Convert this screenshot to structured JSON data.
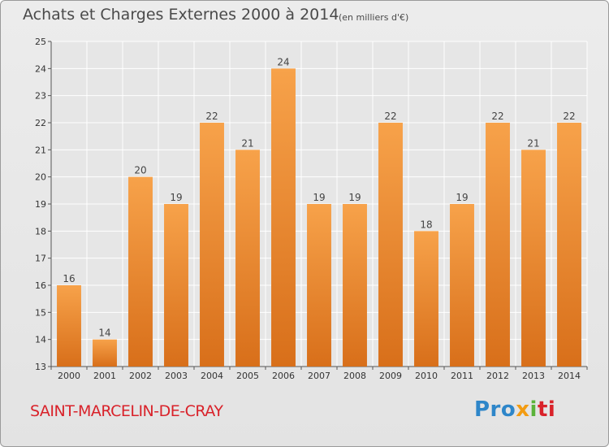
{
  "header": {
    "title": "Achats et Charges Externes 2000 à 2014",
    "subtitle": "(en milliers d'€)"
  },
  "footer": {
    "commune": "SAINT-MARCELIN-DE-CRAY",
    "logo": {
      "p1": "Pro",
      "p2": "x",
      "p3": "i",
      "p4": "ti"
    }
  },
  "colors": {
    "bar_top": "#f7a24a",
    "bar_bottom": "#d86f1a",
    "grid": "#ffffff",
    "plot_bg": "#e6e6e6"
  },
  "chart_data": {
    "type": "bar",
    "title": "Achats et Charges Externes 2000 à 2014",
    "subtitle": "(en milliers d'€)",
    "categories": [
      "2000",
      "2001",
      "2002",
      "2003",
      "2004",
      "2005",
      "2006",
      "2007",
      "2008",
      "2009",
      "2010",
      "2011",
      "2012",
      "2013",
      "2014"
    ],
    "values": [
      16,
      14,
      20,
      19,
      22,
      21,
      24,
      19,
      19,
      22,
      18,
      19,
      22,
      21,
      22
    ],
    "xlabel": "",
    "ylabel": "",
    "ylim": [
      13,
      25
    ],
    "yticks": [
      13,
      14,
      15,
      16,
      17,
      18,
      19,
      20,
      21,
      22,
      23,
      24,
      25
    ],
    "grid": true,
    "data_labels": true
  }
}
